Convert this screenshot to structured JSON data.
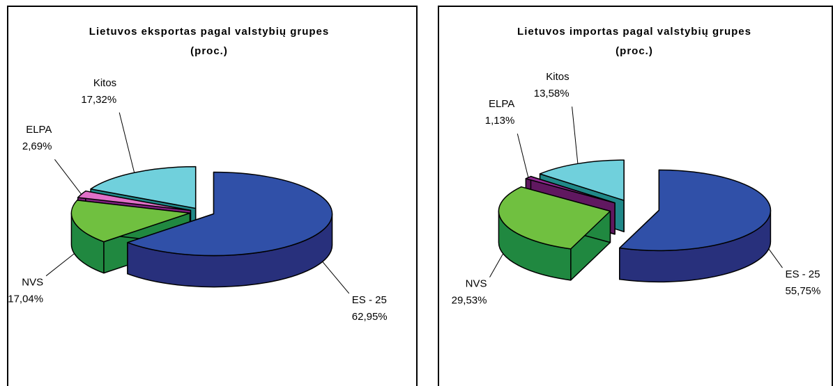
{
  "chart_data": [
    {
      "type": "pie",
      "title": "Lietuvos eksportas pagal valstybių grupes",
      "subtitle": "(proc.)",
      "categories": [
        "ES - 25",
        "NVS",
        "ELPA",
        "Kitos"
      ],
      "values": [
        62.95,
        17.04,
        2.69,
        17.32
      ],
      "value_labels": [
        "62,95%",
        "17,04%",
        "2,69%",
        "17,32%"
      ],
      "colors": [
        "#3050a8",
        "#70c040",
        "#e070c8",
        "#70d0dc"
      ],
      "side_colors": [
        "#28307c",
        "#208840",
        "#802080",
        "#208888"
      ]
    },
    {
      "type": "pie",
      "title": "Lietuvos importas pagal valstybių grupes",
      "subtitle": "(proc.)",
      "categories": [
        "ES - 25",
        "NVS",
        "ELPA",
        "Kitos"
      ],
      "values": [
        55.75,
        29.53,
        1.13,
        13.58
      ],
      "value_labels": [
        "55,75%",
        "29,53%",
        "1,13%",
        "13,58%"
      ],
      "colors": [
        "#3050a8",
        "#70c040",
        "#902890",
        "#70d0dc"
      ],
      "side_colors": [
        "#28307c",
        "#208840",
        "#601860",
        "#208888"
      ]
    }
  ]
}
